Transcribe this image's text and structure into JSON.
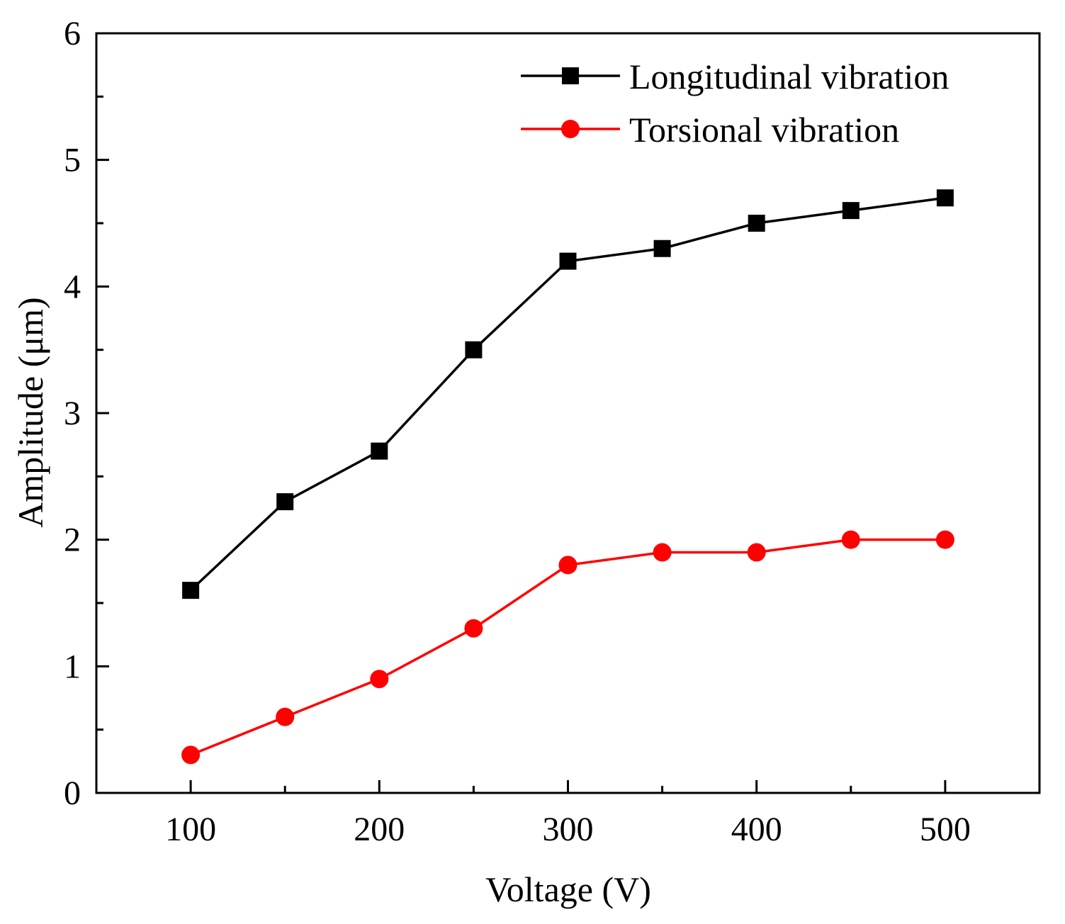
{
  "chart_data": {
    "type": "line",
    "title": "",
    "xlabel": "Voltage (V)",
    "ylabel": "Amplitude (μm)",
    "xlim": [
      50,
      550
    ],
    "ylim": [
      0,
      6
    ],
    "x_ticks": [
      100,
      200,
      300,
      400,
      500
    ],
    "x_minor_ticks": [
      150,
      250,
      350,
      450
    ],
    "y_ticks": [
      0,
      1,
      2,
      3,
      4,
      5,
      6
    ],
    "y_minor_ticks": [
      0.5,
      1.5,
      2.5,
      3.5,
      4.5,
      5.5
    ],
    "x": [
      100,
      150,
      200,
      250,
      300,
      350,
      400,
      450,
      500
    ],
    "series": [
      {
        "name": "Longitudinal vibration",
        "values": [
          1.6,
          2.3,
          2.7,
          3.5,
          4.2,
          4.3,
          4.5,
          4.6,
          4.7
        ],
        "color": "#000000",
        "marker": "square"
      },
      {
        "name": "Torsional vibration",
        "values": [
          0.3,
          0.6,
          0.9,
          1.3,
          1.8,
          1.9,
          1.9,
          2.0,
          2.0
        ],
        "color": "#ff0000",
        "marker": "circle"
      }
    ],
    "grid": false,
    "legend_position": "top-right"
  }
}
